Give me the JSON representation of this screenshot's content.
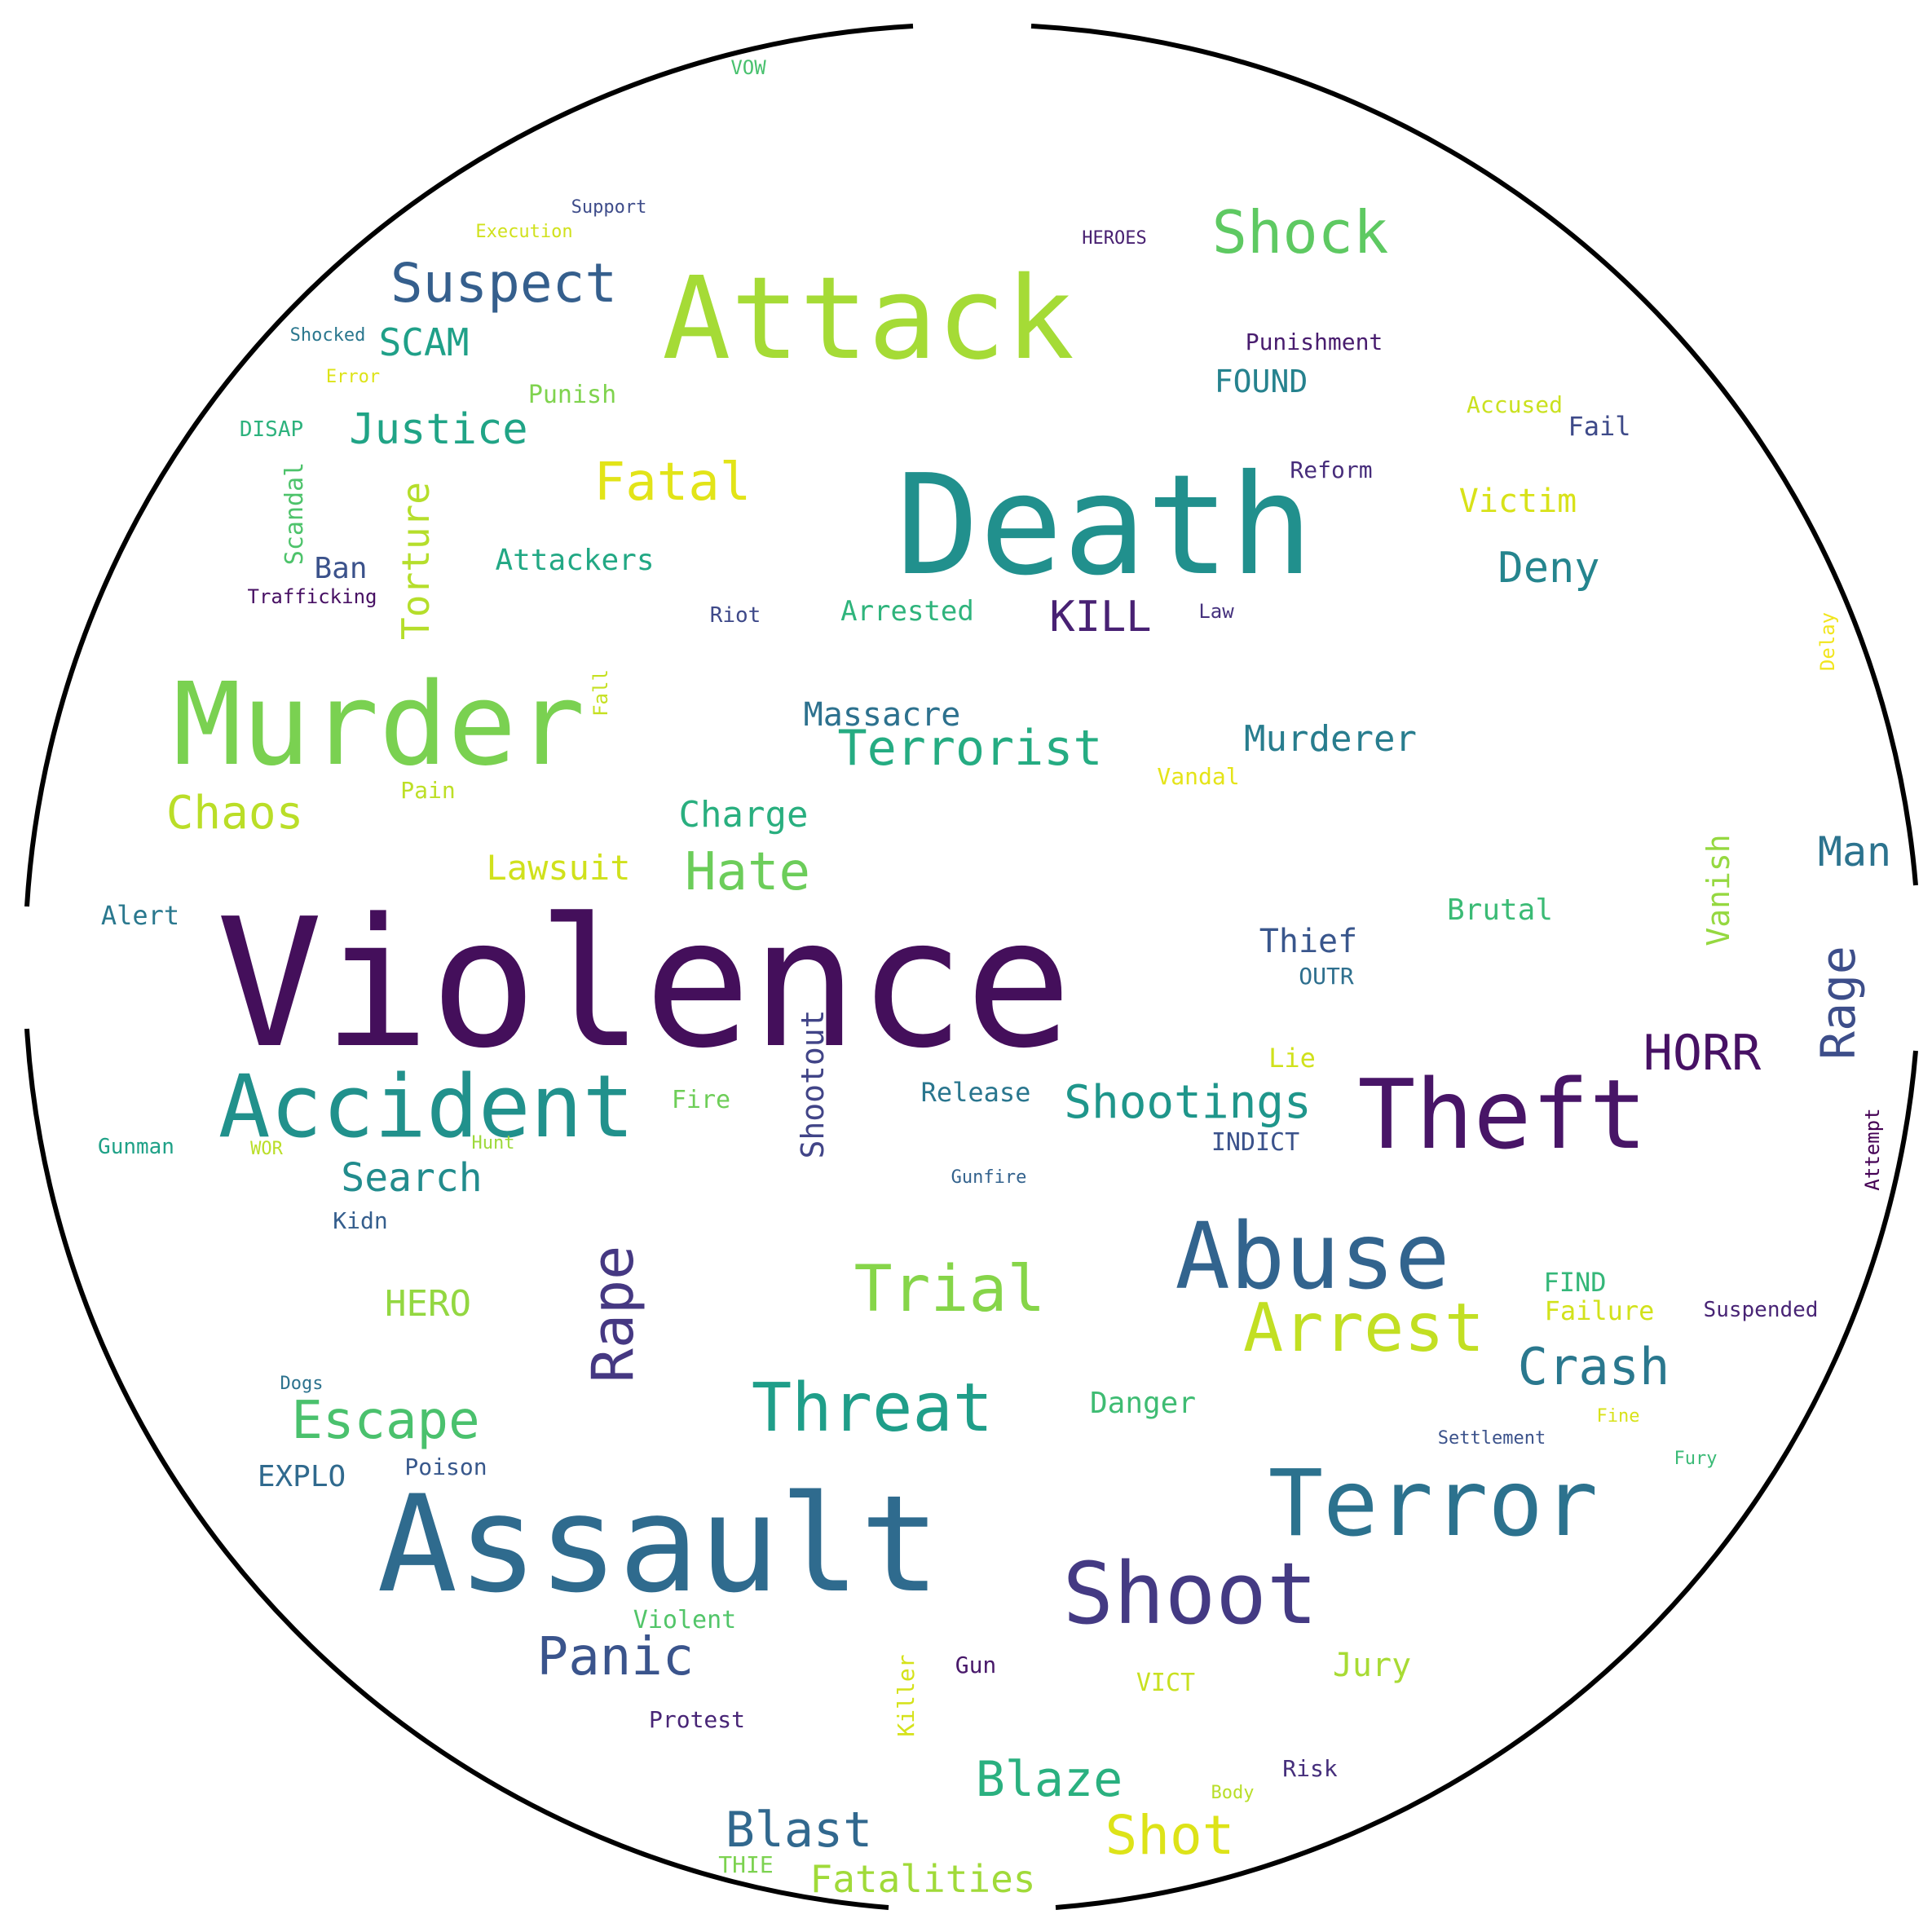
{
  "words": [
    {
      "text": "Violence",
      "color": "#440f5b"
    },
    {
      "text": "Death",
      "color": "#21908d"
    },
    {
      "text": "Assault",
      "color": "#2f6b8e"
    },
    {
      "text": "Attack",
      "color": "#a5db36"
    },
    {
      "text": "Murder",
      "color": "#7ad151"
    },
    {
      "text": "Theft",
      "color": "#481567"
    },
    {
      "text": "Accident",
      "color": "#21918c"
    },
    {
      "text": "Abuse",
      "color": "#32648e"
    },
    {
      "text": "Terror",
      "color": "#2c728e"
    },
    {
      "text": "Shoot",
      "color": "#443a83"
    },
    {
      "text": "Arrest",
      "color": "#c2df23"
    },
    {
      "text": "Threat",
      "color": "#1f9e89"
    },
    {
      "text": "Shock",
      "color": "#5ec962"
    },
    {
      "text": "Trial",
      "color": "#86d549"
    },
    {
      "text": "Suspect",
      "color": "#355f8d"
    },
    {
      "text": "Rape",
      "color": "#453882"
    },
    {
      "text": "Escape",
      "color": "#4ac16d"
    },
    {
      "text": "Terrorist",
      "color": "#25ac82"
    },
    {
      "text": "Fatal",
      "color": "#e2e418"
    },
    {
      "text": "Hate",
      "color": "#6ccd5a"
    },
    {
      "text": "Panic",
      "color": "#3a548c"
    },
    {
      "text": "Shot",
      "color": "#dde318"
    },
    {
      "text": "Blaze",
      "color": "#2ab07f"
    },
    {
      "text": "Blast",
      "color": "#31688e"
    },
    {
      "text": "Crash",
      "color": "#2a788e"
    },
    {
      "text": "Shootings",
      "color": "#1f968b"
    },
    {
      "text": "Justice",
      "color": "#20a486"
    },
    {
      "text": "Chaos",
      "color": "#bade28"
    },
    {
      "text": "HORR",
      "color": "#471164"
    },
    {
      "text": "Rage",
      "color": "#3d4e8a"
    },
    {
      "text": "Deny",
      "color": "#25858e"
    },
    {
      "text": "Search",
      "color": "#228c8d"
    },
    {
      "text": "KILL",
      "color": "#482173"
    },
    {
      "text": "Fatalities",
      "color": "#a0da39"
    },
    {
      "text": "Torture",
      "color": "#b5de2b"
    },
    {
      "text": "Man",
      "color": "#2c738e"
    },
    {
      "text": "Charge",
      "color": "#29af7f"
    },
    {
      "text": "Murderer",
      "color": "#287d8e"
    },
    {
      "text": "Massacre",
      "color": "#2d718e"
    },
    {
      "text": "Lawsuit",
      "color": "#d0e11c"
    },
    {
      "text": "SCAM",
      "color": "#1fa088"
    },
    {
      "text": "HERO",
      "color": "#93d741"
    },
    {
      "text": "Jury",
      "color": "#a8db34"
    },
    {
      "text": "Shootout",
      "color": "#414487"
    },
    {
      "text": "Thief",
      "color": "#39568c"
    },
    {
      "text": "Victim",
      "color": "#d8e219"
    },
    {
      "text": "Vanish",
      "color": "#95d840"
    },
    {
      "text": "Brutal",
      "color": "#3bbb75"
    },
    {
      "text": "Attackers",
      "color": "#22a884"
    },
    {
      "text": "FOUND",
      "color": "#26828e"
    },
    {
      "text": "Danger",
      "color": "#3fbc73"
    },
    {
      "text": "Arrested",
      "color": "#2fb47c"
    },
    {
      "text": "Release",
      "color": "#2a768e"
    },
    {
      "text": "EXPLO",
      "color": "#306a8e"
    },
    {
      "text": "Ban",
      "color": "#3b528b"
    },
    {
      "text": "Failure",
      "color": "#d2e21b"
    },
    {
      "text": "Alert",
      "color": "#2a788e"
    },
    {
      "text": "Violent",
      "color": "#52c569"
    },
    {
      "text": "Protest",
      "color": "#482576"
    },
    {
      "text": "VICT",
      "color": "#c8e020"
    },
    {
      "text": "Punishment",
      "color": "#481c6e"
    },
    {
      "text": "Punish",
      "color": "#7fd34e"
    },
    {
      "text": "Scandal",
      "color": "#4ec36b"
    },
    {
      "text": "Accused",
      "color": "#cae11f"
    },
    {
      "text": "Fail",
      "color": "#3e4a89"
    },
    {
      "text": "Reform",
      "color": "#472d7b"
    },
    {
      "text": "FIND",
      "color": "#35b779"
    },
    {
      "text": "Lie",
      "color": "#d0e11c"
    },
    {
      "text": "INDICT",
      "color": "#3b528b"
    },
    {
      "text": "Fire",
      "color": "#6ece58"
    },
    {
      "text": "Suspended",
      "color": "#482475"
    },
    {
      "text": "Gunman",
      "color": "#1fa187"
    },
    {
      "text": "Kidn",
      "color": "#355e8d"
    },
    {
      "text": "Poison",
      "color": "#38588c"
    },
    {
      "text": "Killer",
      "color": "#d5e21a"
    },
    {
      "text": "Gun",
      "color": "#48186a"
    },
    {
      "text": "Risk",
      "color": "#462f7c"
    },
    {
      "text": "Pain",
      "color": "#bddf26"
    },
    {
      "text": "Vandal",
      "color": "#e5e419"
    },
    {
      "text": "Fall",
      "color": "#c5e021"
    },
    {
      "text": "OUTR",
      "color": "#2e6f8e"
    },
    {
      "text": "Riot",
      "color": "#3e4989"
    },
    {
      "text": "Law",
      "color": "#46327e"
    },
    {
      "text": "Trafficking",
      "color": "#471063"
    },
    {
      "text": "DISAP",
      "color": "#2db27d"
    },
    {
      "text": "Support",
      "color": "#3e4c8a"
    },
    {
      "text": "Execution",
      "color": "#d0e11c"
    },
    {
      "text": "HEROES",
      "color": "#482071"
    },
    {
      "text": "Shocked",
      "color": "#2a778e"
    },
    {
      "text": "Error",
      "color": "#dde318"
    },
    {
      "text": "Settlement",
      "color": "#3b528b"
    },
    {
      "text": "Fury",
      "color": "#3aba76"
    },
    {
      "text": "Fine",
      "color": "#d8e219"
    },
    {
      "text": "Gunfire",
      "color": "#33628d"
    },
    {
      "text": "Dogs",
      "color": "#2c728e"
    },
    {
      "text": "Hunt",
      "color": "#9dd93b"
    },
    {
      "text": "WOR",
      "color": "#bade28"
    },
    {
      "text": "Body",
      "color": "#b8de29"
    },
    {
      "text": "THIE",
      "color": "#7cd250"
    },
    {
      "text": "VOW",
      "color": "#48c16e"
    },
    {
      "text": "Delay",
      "color": "#f1e51d"
    },
    {
      "text": "Attempt",
      "color": "#440154"
    }
  ]
}
